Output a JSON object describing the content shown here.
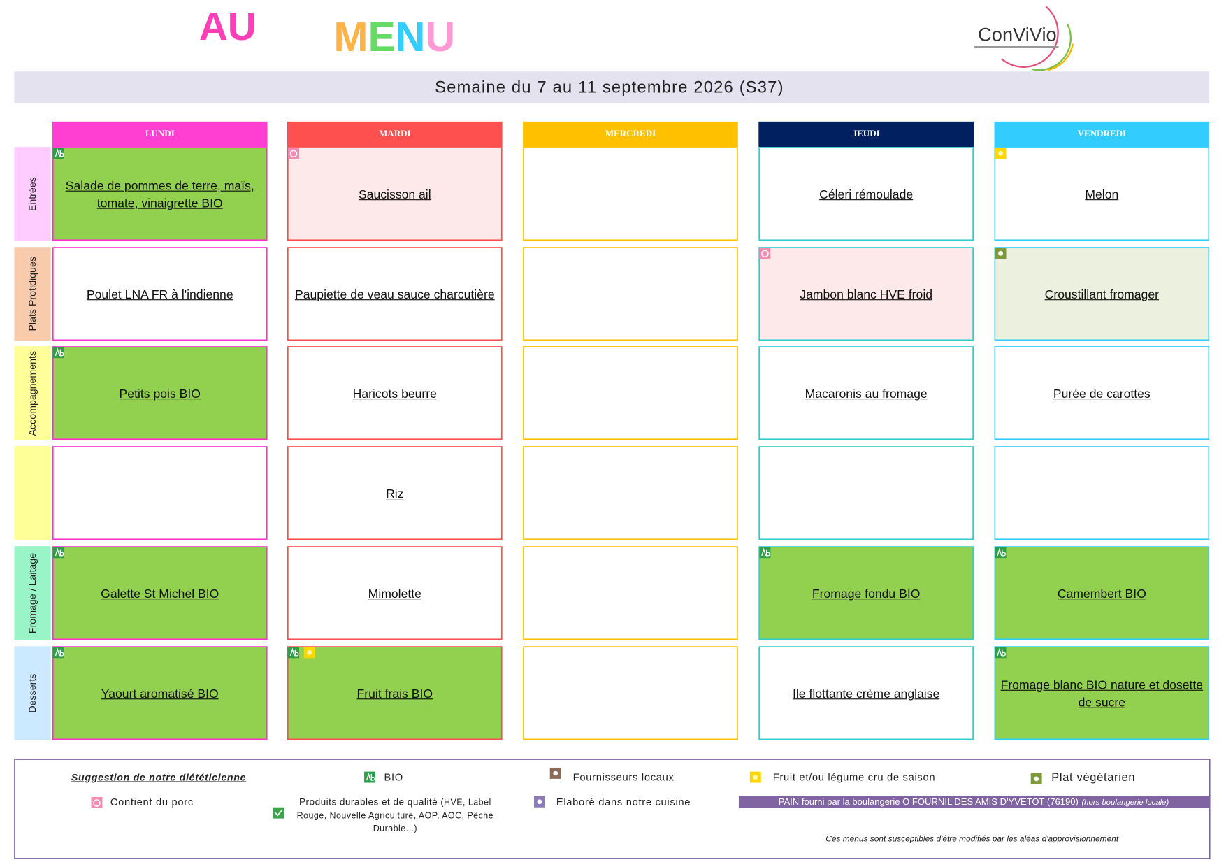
{
  "header": {
    "title_au": "AU",
    "title_menu": "MENU",
    "logo": "ConViVio",
    "week": "Semaine du 7 au 11 septembre 2026 (S37)"
  },
  "days": [
    "LUNDI",
    "MARDI",
    "MERCREDI",
    "JEUDI",
    "VENDREDI"
  ],
  "rows": [
    {
      "label": "Entrées",
      "cells": [
        {
          "text": "Salade de pommes de terre, maïs, tomate, vinaigrette BIO",
          "icons": [
            "bio"
          ],
          "fill": "bio"
        },
        {
          "text": "Saucisson ail",
          "icons": [
            "porc"
          ],
          "fill": "porc"
        },
        {
          "text": null,
          "icons": [],
          "fill": null
        },
        {
          "text": "Céleri rémoulade",
          "icons": [],
          "fill": null
        },
        {
          "text": "Melon",
          "icons": [
            "saison"
          ],
          "fill": null
        }
      ]
    },
    {
      "label": "Plats Protidiques",
      "cells": [
        {
          "text": "Poulet LNA FR à l'indienne",
          "icons": [],
          "fill": null
        },
        {
          "text": "Paupiette de veau sauce charcutière",
          "icons": [],
          "fill": null
        },
        {
          "text": null,
          "icons": [],
          "fill": null
        },
        {
          "text": "Jambon blanc HVE froid",
          "icons": [
            "porc"
          ],
          "fill": "porc"
        },
        {
          "text": "Croustillant fromager",
          "icons": [
            "vege"
          ],
          "fill": "vege"
        }
      ]
    },
    {
      "label": "Accompagnements",
      "cells": [
        {
          "text": "Petits pois BIO",
          "icons": [
            "bio"
          ],
          "fill": "bio"
        },
        {
          "text": "Haricots beurre",
          "icons": [],
          "fill": null
        },
        {
          "text": null,
          "icons": [],
          "fill": null
        },
        {
          "text": "Macaronis au fromage",
          "icons": [],
          "fill": null
        },
        {
          "text": "Purée de carottes",
          "icons": [],
          "fill": null
        }
      ]
    },
    {
      "label": null,
      "cells": [
        {
          "text": null,
          "icons": [],
          "fill": null
        },
        {
          "text": "Riz",
          "icons": [],
          "fill": null
        },
        {
          "text": null,
          "icons": [],
          "fill": null
        },
        {
          "text": null,
          "icons": [],
          "fill": null
        },
        {
          "text": null,
          "icons": [],
          "fill": null
        }
      ]
    },
    {
      "label": "Fromage / Laitage",
      "cells": [
        {
          "text": "Galette St Michel BIO",
          "icons": [
            "bio"
          ],
          "fill": "bio"
        },
        {
          "text": "Mimolette",
          "icons": [],
          "fill": null
        },
        {
          "text": null,
          "icons": [],
          "fill": null
        },
        {
          "text": "Fromage fondu BIO",
          "icons": [
            "bio"
          ],
          "fill": "bio"
        },
        {
          "text": "Camembert BIO",
          "icons": [
            "bio"
          ],
          "fill": "bio"
        }
      ]
    },
    {
      "label": "Desserts",
      "cells": [
        {
          "text": "Yaourt aromatisé BIO",
          "icons": [
            "bio"
          ],
          "fill": "bio"
        },
        {
          "text": "Fruit frais BIO",
          "icons": [
            "bio",
            "saison"
          ],
          "fill": "bio"
        },
        {
          "text": null,
          "icons": [],
          "fill": null
        },
        {
          "text": "Ile flottante crème anglaise",
          "icons": [],
          "fill": null
        },
        {
          "text": "Fromage blanc BIO nature et dosette de sucre",
          "icons": [
            "bio"
          ],
          "fill": "bio"
        }
      ]
    }
  ],
  "legend": {
    "suggestion": "Suggestion de notre diététicienne",
    "bio": "BIO",
    "locaux": "Fournisseurs locaux",
    "saison": "Fruit et/ou légume cru de saison",
    "vege": "Plat végétarien",
    "porc": "Contient du porc",
    "durables": "Produits durables et de qualité",
    "durables_detail": "(HVE, Label Rouge, Nouvelle Agriculture, AOP, AOC, Pêche Durable...)",
    "cuisine": "Elaboré dans notre cuisine",
    "pain": "PAIN fourni par la boulangerie O FOURNIL DES AMIS D'YVETOT (76190)",
    "pain_note": "(hors boulangerie locale)",
    "notice": "Ces menus sont susceptibles d'être modifiés par les aléas d'approvisionnement"
  }
}
